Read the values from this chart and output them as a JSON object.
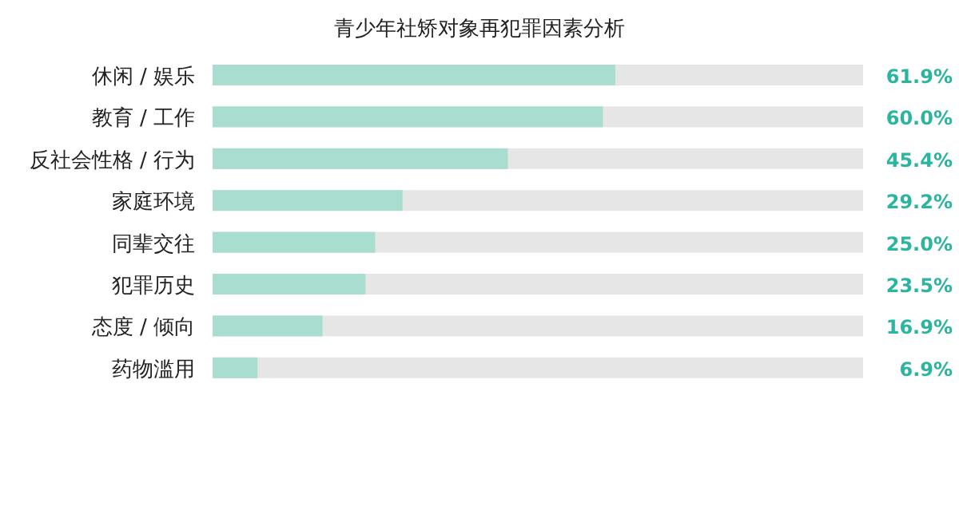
{
  "chart_data": {
    "type": "bar",
    "orientation": "horizontal",
    "title": "青少年社矫对象再犯罪因素分析",
    "categories": [
      "休闲 / 娱乐",
      "教育 / 工作",
      "反社会性格 / 行为",
      "家庭环境",
      "同辈交往",
      "犯罪历史",
      "态度 / 倾向",
      "药物滥用"
    ],
    "values": [
      61.9,
      60.0,
      45.4,
      29.2,
      25.0,
      23.5,
      16.9,
      6.9
    ],
    "value_labels": [
      "61.9%",
      "60.0%",
      "45.4%",
      "29.2%",
      "25.0%",
      "23.5%",
      "16.9%",
      "6.9%"
    ],
    "color": "#a9ddd0",
    "xlim": [
      0,
      100
    ]
  }
}
